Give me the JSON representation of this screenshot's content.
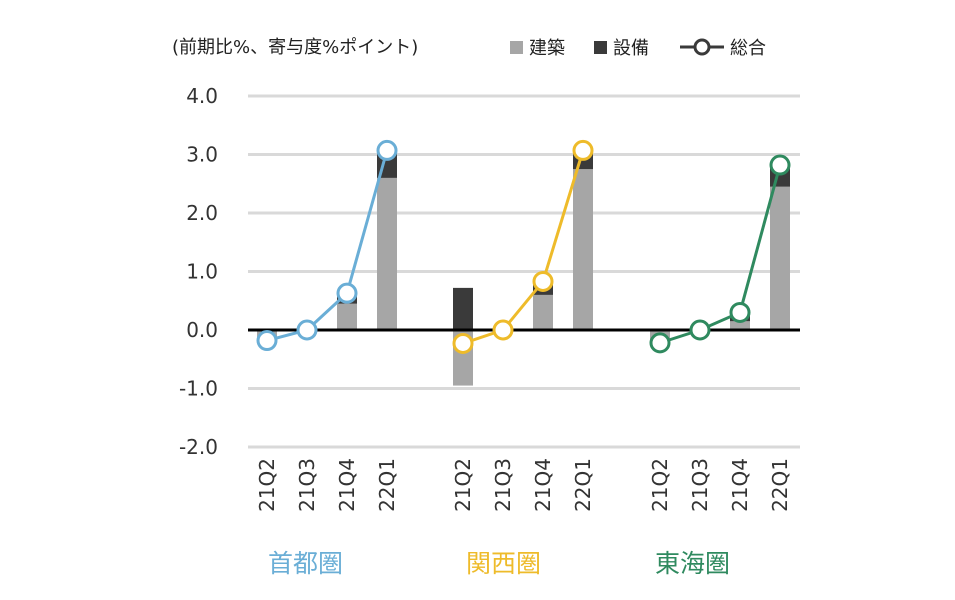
{
  "chart_data": {
    "type": "bar",
    "subtype": "stacked-bar-with-line",
    "unit_label": "(前期比%、寄与度%ポイント)",
    "ylim": [
      -2.0,
      4.0
    ],
    "yticks": [
      "4.0",
      "3.0",
      "2.0",
      "1.0",
      "0.0",
      "-1.0",
      "-2.0"
    ],
    "grid": true,
    "legend_position": "top",
    "legend": {
      "construction": "建築",
      "equipment": "設備",
      "total": "総合"
    },
    "colors": {
      "construction": "#a6a6a6",
      "equipment": "#3a3a3a",
      "grid": "#d9d9d9",
      "zero_line": "#000000"
    },
    "groups": [
      {
        "name": "首都圏",
        "color": "#6aaed6",
        "categories": [
          "21Q2",
          "21Q3",
          "21Q4",
          "22Q1"
        ],
        "construction": [
          -0.15,
          0.0,
          0.45,
          2.6
        ],
        "equipment": [
          0.0,
          0.0,
          0.15,
          0.45
        ],
        "total": [
          -0.18,
          0.0,
          0.63,
          3.07
        ]
      },
      {
        "name": "関西圏",
        "color": "#eebb2a",
        "categories": [
          "21Q2",
          "21Q3",
          "21Q4",
          "22Q1"
        ],
        "construction": [
          -0.95,
          0.0,
          0.6,
          2.75
        ],
        "equipment": [
          0.72,
          0.0,
          0.2,
          0.3
        ],
        "total": [
          -0.23,
          0.0,
          0.83,
          3.07
        ]
      },
      {
        "name": "東海圏",
        "color": "#2f8a5f",
        "categories": [
          "21Q2",
          "21Q3",
          "21Q4",
          "22Q1"
        ],
        "construction": [
          -0.2,
          0.0,
          0.15,
          2.45
        ],
        "equipment": [
          0.0,
          0.0,
          0.15,
          0.35
        ],
        "total": [
          -0.22,
          0.0,
          0.3,
          2.82
        ]
      }
    ]
  }
}
